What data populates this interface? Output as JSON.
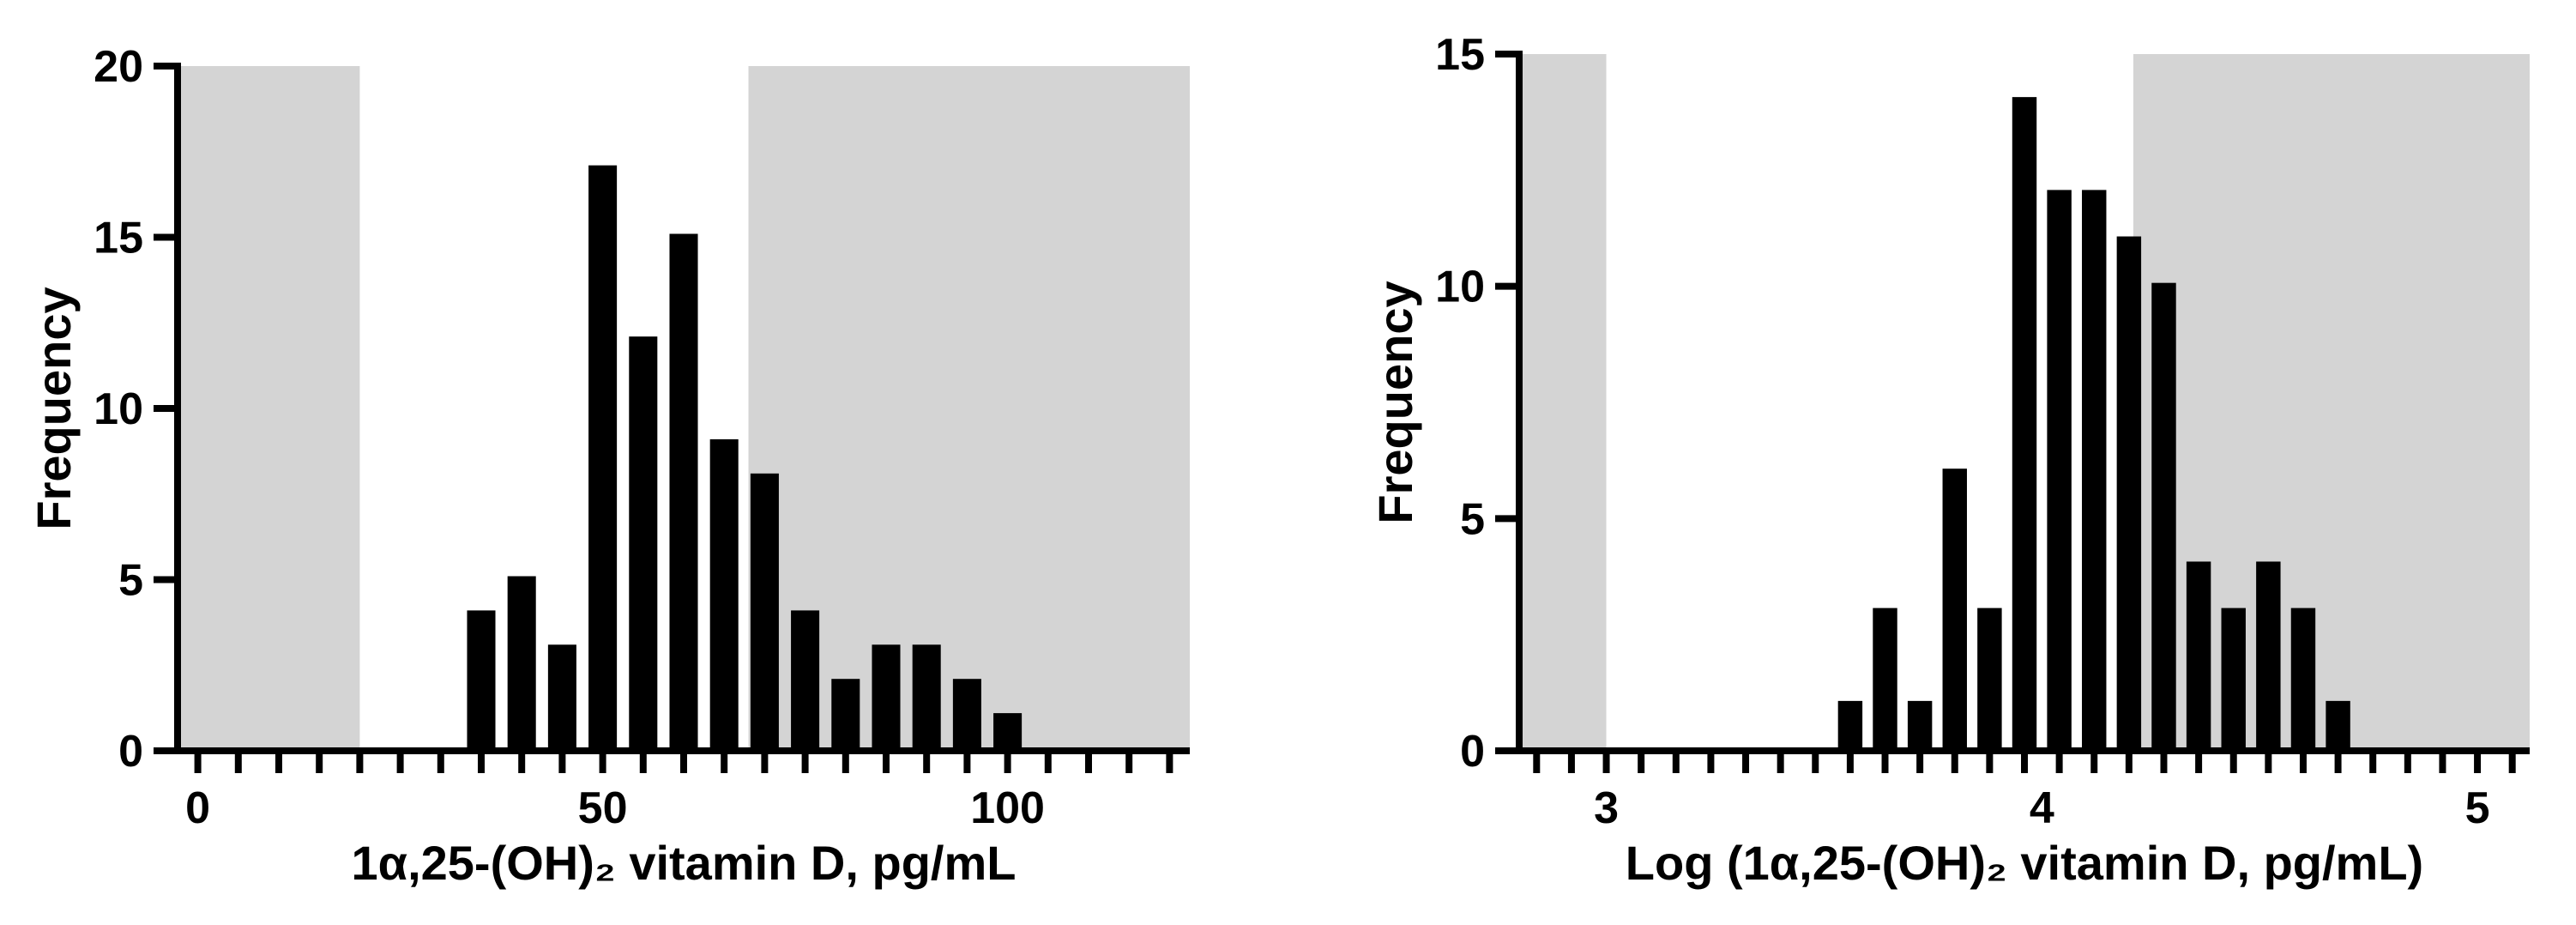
{
  "chart_data": [
    {
      "type": "histogram",
      "xlabel": "1α,25-(OH)₂ vitamin D, pg/mL",
      "ylabel": "Frequency",
      "bins": [
        -2.5,
        2.5,
        7.5,
        12.5,
        17.5,
        22.5,
        27.5,
        32.5,
        37.5,
        42.5,
        47.5,
        52.5,
        57.5,
        62.5,
        67.5,
        72.5,
        77.5,
        82.5,
        87.5,
        92.5,
        97.5,
        102.5,
        107.5,
        112.5,
        117.5,
        122.5
      ],
      "values": [
        0,
        0,
        0,
        0,
        0,
        0,
        0,
        4,
        5,
        3,
        17,
        12,
        15,
        9,
        8,
        4,
        2,
        3,
        3,
        2,
        1,
        0,
        0,
        0,
        0
      ],
      "color": "#000000",
      "shade_color": "#d4d4d4",
      "shaded_regions": [
        [
          -2.5,
          20
        ],
        [
          68,
          122.5
        ]
      ],
      "xlim": [
        -2.5,
        122.5
      ],
      "xticks": [
        0,
        50,
        100
      ],
      "ylim": [
        0,
        20
      ],
      "yticks": [
        0,
        5,
        10,
        15,
        20
      ]
    },
    {
      "type": "histogram",
      "xlabel": "Log (1α,25-(OH)₂ vitamin D, pg/mL)",
      "ylabel": "Frequency",
      "bins": [
        2.8,
        2.88,
        2.96,
        3.04,
        3.12,
        3.2,
        3.28,
        3.36,
        3.44,
        3.52,
        3.6,
        3.68,
        3.76,
        3.84,
        3.92,
        4.0,
        4.08,
        4.16,
        4.24,
        4.32,
        4.4,
        4.48,
        4.56,
        4.64,
        4.72,
        4.8,
        4.88,
        4.96,
        5.04,
        5.12
      ],
      "values": [
        0,
        0,
        0,
        0,
        0,
        0,
        0,
        0,
        0,
        1,
        3,
        1,
        6,
        3,
        14,
        12,
        12,
        11,
        10,
        4,
        3,
        4,
        3,
        1,
        0,
        0,
        0,
        0,
        0
      ],
      "color": "#000000",
      "shade_color": "#d4d4d4",
      "shaded_regions": [
        [
          2.8,
          3.0
        ],
        [
          4.21,
          5.12
        ]
      ],
      "xlim": [
        2.8,
        5.12
      ],
      "xticks": [
        3,
        4,
        5
      ],
      "ylim": [
        0,
        15
      ],
      "yticks": [
        0,
        5,
        10,
        15
      ]
    }
  ]
}
